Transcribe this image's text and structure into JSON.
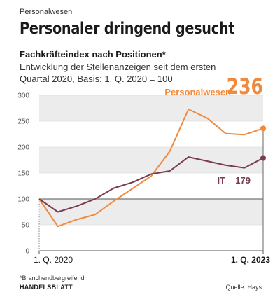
{
  "kicker": "Personalwesen",
  "headline": "Personaler dringend gesucht",
  "chart_data": {
    "type": "line",
    "title": "Fachkräfteindex nach Positionen*",
    "subtitle": "Entwicklung der Stellenanzeigen seit dem ersten Quartal 2020, Basis: 1. Q. 2020 = 100",
    "ylim": [
      0,
      300
    ],
    "yticks": [
      0,
      50,
      100,
      150,
      200,
      250,
      300
    ],
    "baseline": 100,
    "x_range": [
      0,
      12
    ],
    "x_tick_labels": [
      {
        "x": 0,
        "label": "1. Q. 2020"
      },
      {
        "x": 12,
        "label": "1. Q. 2023"
      }
    ],
    "grid": true,
    "series": [
      {
        "name": "Personalwesen",
        "color": "#f08a3c",
        "end_label": "236",
        "values": [
          100,
          47,
          60,
          70,
          96,
          120,
          144,
          192,
          273,
          256,
          226,
          224,
          236
        ]
      },
      {
        "name": "IT",
        "color": "#7a3b52",
        "end_label": "179",
        "values": [
          100,
          75,
          86,
          100,
          121,
          132,
          148,
          154,
          181,
          173,
          165,
          160,
          179
        ]
      }
    ],
    "footnote": "*Branchenübergreifend"
  },
  "footer": {
    "brand": "HANDELSBLATT",
    "source_label": "Quelle:",
    "source_value": "Hays"
  }
}
